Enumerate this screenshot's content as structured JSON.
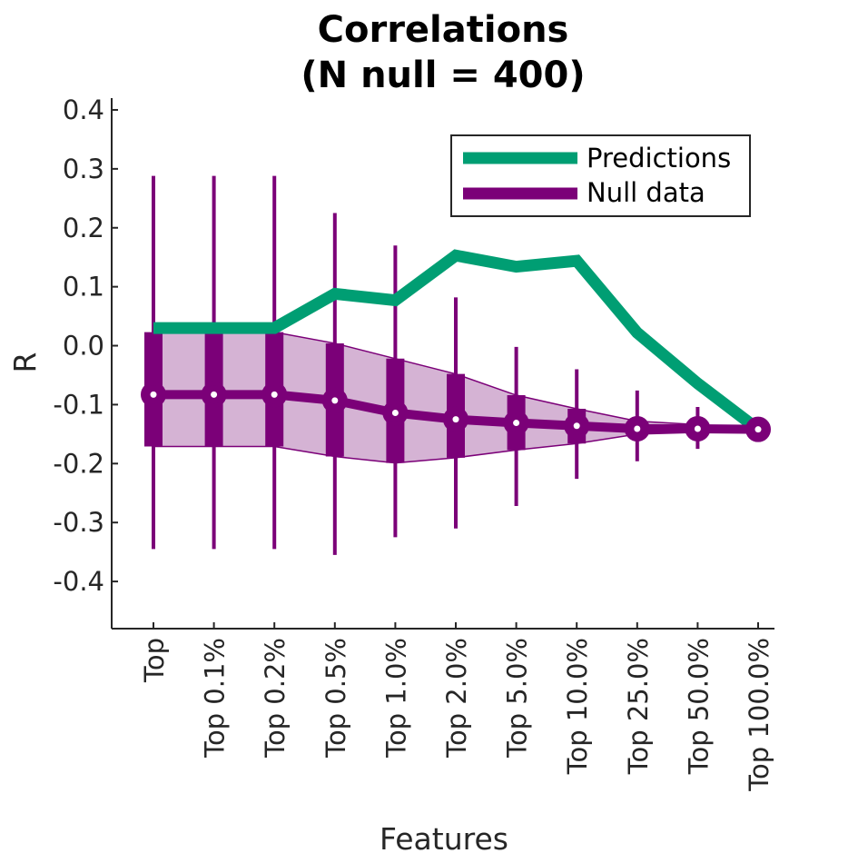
{
  "chart_data": {
    "type": "line",
    "title": [
      "Correlations",
      "(N null = 400)"
    ],
    "xlabel": "Features",
    "ylabel": "R",
    "categories": [
      "Top",
      "Top 0.1%",
      "Top 0.2%",
      "Top 0.5%",
      "Top 1.0%",
      "Top 2.0%",
      "Top 5.0%",
      "Top 10.0%",
      "Top 25.0%",
      "Top 50.0%",
      "Top 100.0%"
    ],
    "ylim": [
      -0.48,
      0.42
    ],
    "yticks": [
      -0.4,
      -0.3,
      -0.2,
      -0.1,
      0.0,
      0.1,
      0.2,
      0.3,
      0.4
    ],
    "ytick_labels": [
      "-0.4",
      "-0.3",
      "-0.2",
      "-0.1",
      "0.0",
      "0.1",
      "0.2",
      "0.3",
      "0.4"
    ],
    "grid": false,
    "legend_position": "top-right",
    "series": [
      {
        "name": "Predictions",
        "color": "#009E73",
        "values": [
          0.03,
          0.03,
          0.03,
          0.088,
          0.077,
          0.153,
          0.134,
          0.144,
          0.022,
          -0.064,
          -0.142
        ]
      },
      {
        "name": "Null data",
        "color": "#7B0078",
        "values": [
          -0.083,
          -0.083,
          -0.083,
          -0.093,
          -0.114,
          -0.125,
          -0.131,
          -0.136,
          -0.141,
          -0.141,
          -0.142
        ],
        "q25": [
          -0.171,
          -0.171,
          -0.171,
          -0.188,
          -0.199,
          -0.19,
          -0.177,
          -0.166,
          -0.15,
          -0.147,
          -0.142
        ],
        "q75": [
          0.023,
          0.023,
          0.023,
          0.004,
          -0.022,
          -0.048,
          -0.084,
          -0.107,
          -0.128,
          -0.134,
          -0.142
        ],
        "whisker_low": [
          -0.345,
          -0.345,
          -0.345,
          -0.355,
          -0.325,
          -0.31,
          -0.272,
          -0.226,
          -0.196,
          -0.175,
          -0.142
        ],
        "whisker_high": [
          0.288,
          0.288,
          0.288,
          0.225,
          0.17,
          0.082,
          -0.002,
          -0.04,
          -0.076,
          -0.104,
          -0.142
        ],
        "band_color": "#D5B3D4"
      }
    ]
  }
}
